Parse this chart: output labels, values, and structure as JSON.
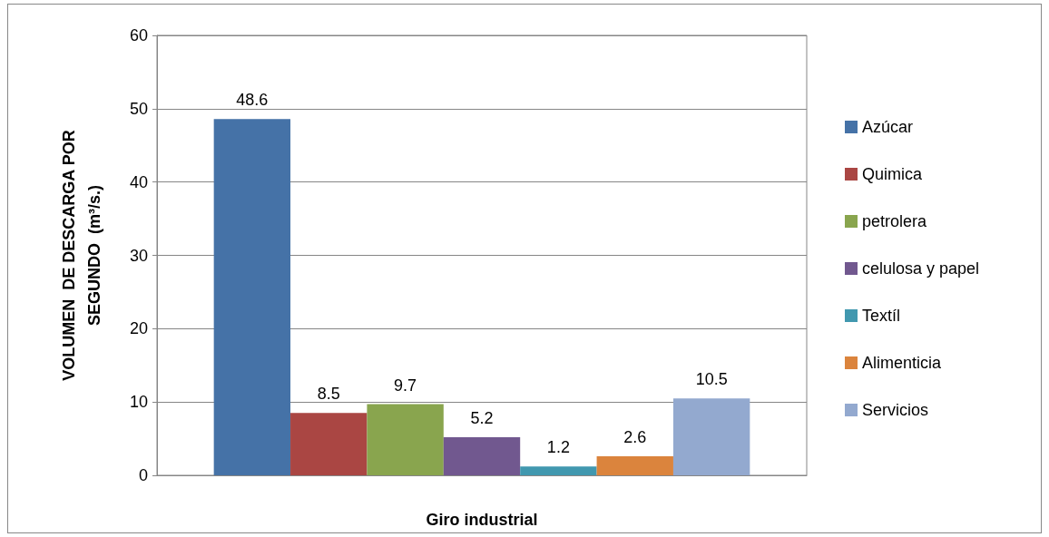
{
  "chart_data": {
    "type": "bar",
    "xlabel": "Giro industrial",
    "ylabel": "VOLUMEN  DE DESCARGA POR\nSEGUNDO  (m³/s.)",
    "categories": [
      null
    ],
    "series": [
      {
        "name": "Azúcar",
        "color": "#4572a7",
        "values": [
          48.6
        ]
      },
      {
        "name": "Quimica",
        "color": "#aa4643",
        "values": [
          8.5
        ]
      },
      {
        "name": "petrolera",
        "color": "#89a54e",
        "values": [
          9.7
        ]
      },
      {
        "name": "celulosa y papel",
        "color": "#71588f",
        "values": [
          5.2
        ]
      },
      {
        "name": "Textíl",
        "color": "#4198af",
        "values": [
          1.2
        ]
      },
      {
        "name": "Alimenticia",
        "color": "#db843d",
        "values": [
          2.6
        ]
      },
      {
        "name": "Servicios",
        "color": "#93a9cf",
        "values": [
          10.5
        ]
      }
    ],
    "ylim": [
      0,
      60
    ],
    "yticks": [
      0,
      10,
      20,
      30,
      40,
      50,
      60
    ],
    "grid": "y",
    "legend": "right",
    "data_labels": true
  }
}
